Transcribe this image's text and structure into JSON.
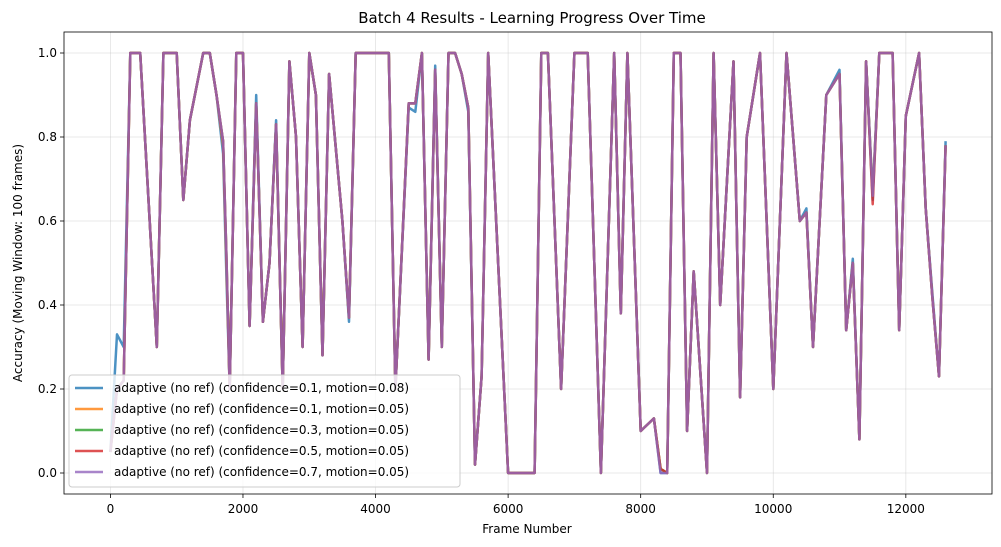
{
  "chart_data": {
    "type": "line",
    "title": "Batch 4 Results - Learning Progress Over Time",
    "xlabel": "Frame Number",
    "ylabel": "Accuracy (Moving Window: 100 frames)",
    "xlim": [
      -700,
      13300
    ],
    "ylim": [
      -0.05,
      1.05
    ],
    "xticks": [
      0,
      2000,
      4000,
      6000,
      8000,
      10000,
      12000
    ],
    "yticks": [
      0.0,
      0.2,
      0.4,
      0.6,
      0.8,
      1.0
    ],
    "grid": true,
    "legend_position": "lower-left",
    "series": [
      {
        "name": "adaptive (no ref) (confidence=0.1, motion=0.08)",
        "color": "#1f77b4",
        "x": [
          0,
          100,
          200,
          300,
          450,
          700,
          800,
          1000,
          1100,
          1200,
          1400,
          1500,
          1600,
          1700,
          1750,
          1800,
          1900,
          2000,
          2100,
          2200,
          2300,
          2400,
          2500,
          2600,
          2700,
          2800,
          2900,
          3000,
          3100,
          3200,
          3300,
          3500,
          3600,
          3700,
          4000,
          4200,
          4300,
          4500,
          4600,
          4700,
          4800,
          4900,
          5000,
          5100,
          5200,
          5300,
          5400,
          5500,
          5600,
          5700,
          6000,
          6400,
          6500,
          6600,
          6800,
          7000,
          7200,
          7400,
          7600,
          7700,
          7800,
          8000,
          8200,
          8300,
          8400,
          8500,
          8600,
          8700,
          8800,
          9000,
          9100,
          9200,
          9400,
          9500,
          9600,
          9800,
          10000,
          10200,
          10400,
          10500,
          10600,
          10800,
          11000,
          11100,
          11200,
          11300,
          11400,
          11500,
          11600,
          11800,
          11900,
          12000,
          12200,
          12300,
          12400,
          12500,
          12600
        ],
        "y": [
          0.05,
          0.33,
          0.3,
          1.0,
          1.0,
          0.3,
          1.0,
          1.0,
          0.65,
          0.84,
          1.0,
          1.0,
          0.9,
          0.76,
          0.47,
          0.2,
          1.0,
          1.0,
          0.35,
          0.9,
          0.36,
          0.5,
          0.84,
          0.2,
          0.98,
          0.8,
          0.3,
          1.0,
          0.9,
          0.28,
          0.95,
          0.6,
          0.36,
          1.0,
          1.0,
          1.0,
          0.2,
          0.87,
          0.86,
          1.0,
          0.27,
          0.97,
          0.3,
          1.0,
          1.0,
          0.95,
          0.86,
          0.02,
          0.23,
          1.0,
          0.0,
          0.0,
          1.0,
          1.0,
          0.2,
          1.0,
          1.0,
          0.0,
          1.0,
          0.38,
          1.0,
          0.1,
          0.13,
          0.0,
          0.0,
          1.0,
          1.0,
          0.1,
          0.48,
          0.0,
          1.0,
          0.4,
          0.98,
          0.18,
          0.8,
          1.0,
          0.2,
          1.0,
          0.6,
          0.63,
          0.3,
          0.9,
          0.96,
          0.34,
          0.51,
          0.08,
          0.98,
          0.65,
          1.0,
          1.0,
          0.34,
          0.85,
          1.0,
          0.63,
          0.43,
          0.23,
          0.79
        ]
      },
      {
        "name": "adaptive (no ref) (confidence=0.1, motion=0.05)",
        "color": "#ff7f0e",
        "x": [
          0,
          100,
          200,
          300,
          450,
          700,
          800,
          1000,
          1100,
          1200,
          1400,
          1500,
          1600,
          1700,
          1750,
          1800,
          1900,
          2000,
          2100,
          2200,
          2300,
          2400,
          2500,
          2600,
          2700,
          2800,
          2900,
          3000,
          3100,
          3200,
          3300,
          3500,
          3600,
          3700,
          4000,
          4200,
          4300,
          4500,
          4600,
          4700,
          4800,
          4900,
          5000,
          5100,
          5200,
          5300,
          5400,
          5500,
          5600,
          5700,
          6000,
          6400,
          6500,
          6600,
          6800,
          7000,
          7200,
          7400,
          7600,
          7700,
          7800,
          8000,
          8200,
          8300,
          8400,
          8500,
          8600,
          8700,
          8800,
          9000,
          9100,
          9200,
          9400,
          9500,
          9600,
          9800,
          10000,
          10200,
          10400,
          10500,
          10600,
          10800,
          11000,
          11100,
          11200,
          11300,
          11400,
          11500,
          11600,
          11800,
          11900,
          12000,
          12200,
          12300,
          12400,
          12500,
          12600
        ],
        "y": [
          0.05,
          0.2,
          0.22,
          1.0,
          1.0,
          0.3,
          1.0,
          1.0,
          0.65,
          0.84,
          1.0,
          1.0,
          0.9,
          0.78,
          0.5,
          0.2,
          1.0,
          1.0,
          0.35,
          0.88,
          0.36,
          0.5,
          0.83,
          0.2,
          0.98,
          0.8,
          0.3,
          1.0,
          0.9,
          0.28,
          0.95,
          0.6,
          0.37,
          1.0,
          1.0,
          1.0,
          0.2,
          0.88,
          0.88,
          1.0,
          0.27,
          0.96,
          0.3,
          1.0,
          1.0,
          0.95,
          0.87,
          0.02,
          0.23,
          1.0,
          0.0,
          0.0,
          1.0,
          1.0,
          0.2,
          1.0,
          1.0,
          0.0,
          1.0,
          0.38,
          1.0,
          0.1,
          0.13,
          0.01,
          0.0,
          1.0,
          1.0,
          0.1,
          0.48,
          0.0,
          1.0,
          0.4,
          0.98,
          0.18,
          0.8,
          1.0,
          0.2,
          1.0,
          0.6,
          0.62,
          0.3,
          0.9,
          0.95,
          0.34,
          0.5,
          0.08,
          0.98,
          0.66,
          1.0,
          1.0,
          0.34,
          0.85,
          1.0,
          0.63,
          0.42,
          0.23,
          0.78
        ]
      },
      {
        "name": "adaptive (no ref) (confidence=0.3, motion=0.05)",
        "color": "#2ca02c",
        "x": [
          0,
          100,
          200,
          300,
          450,
          700,
          800,
          1000,
          1100,
          1200,
          1400,
          1500,
          1600,
          1700,
          1750,
          1800,
          1900,
          2000,
          2100,
          2200,
          2300,
          2400,
          2500,
          2600,
          2700,
          2800,
          2900,
          3000,
          3100,
          3200,
          3300,
          3500,
          3600,
          3700,
          4000,
          4200,
          4300,
          4500,
          4600,
          4700,
          4800,
          4900,
          5000,
          5100,
          5200,
          5300,
          5400,
          5500,
          5600,
          5700,
          6000,
          6400,
          6500,
          6600,
          6800,
          7000,
          7200,
          7400,
          7600,
          7700,
          7800,
          8000,
          8200,
          8300,
          8400,
          8500,
          8600,
          8700,
          8800,
          9000,
          9100,
          9200,
          9400,
          9500,
          9600,
          9800,
          10000,
          10200,
          10400,
          10500,
          10600,
          10800,
          11000,
          11100,
          11200,
          11300,
          11400,
          11500,
          11600,
          11800,
          11900,
          12000,
          12200,
          12300,
          12400,
          12500,
          12600
        ],
        "y": [
          0.05,
          0.2,
          0.22,
          1.0,
          1.0,
          0.3,
          1.0,
          1.0,
          0.65,
          0.84,
          1.0,
          1.0,
          0.9,
          0.79,
          0.52,
          0.2,
          1.0,
          1.0,
          0.35,
          0.88,
          0.36,
          0.5,
          0.83,
          0.2,
          0.98,
          0.8,
          0.3,
          1.0,
          0.9,
          0.28,
          0.95,
          0.6,
          0.37,
          1.0,
          1.0,
          1.0,
          0.2,
          0.88,
          0.88,
          1.0,
          0.27,
          0.96,
          0.3,
          1.0,
          1.0,
          0.95,
          0.87,
          0.02,
          0.23,
          1.0,
          0.0,
          0.0,
          1.0,
          1.0,
          0.2,
          1.0,
          1.0,
          0.0,
          1.0,
          0.38,
          1.0,
          0.1,
          0.13,
          0.01,
          0.0,
          1.0,
          1.0,
          0.1,
          0.48,
          0.0,
          1.0,
          0.4,
          0.98,
          0.18,
          0.8,
          1.0,
          0.2,
          1.0,
          0.6,
          0.62,
          0.3,
          0.9,
          0.95,
          0.34,
          0.5,
          0.08,
          0.98,
          0.66,
          1.0,
          1.0,
          0.34,
          0.85,
          1.0,
          0.63,
          0.42,
          0.23,
          0.78
        ]
      },
      {
        "name": "adaptive (no ref) (confidence=0.5, motion=0.05)",
        "color": "#d62728",
        "x": [
          0,
          100,
          200,
          300,
          450,
          700,
          800,
          1000,
          1100,
          1200,
          1400,
          1500,
          1600,
          1700,
          1750,
          1800,
          1900,
          2000,
          2100,
          2200,
          2300,
          2400,
          2500,
          2600,
          2700,
          2800,
          2900,
          3000,
          3100,
          3200,
          3300,
          3500,
          3600,
          3700,
          4000,
          4200,
          4300,
          4500,
          4600,
          4700,
          4800,
          4900,
          5000,
          5100,
          5200,
          5300,
          5400,
          5500,
          5600,
          5700,
          6000,
          6400,
          6500,
          6600,
          6800,
          7000,
          7200,
          7400,
          7600,
          7700,
          7800,
          8000,
          8200,
          8300,
          8400,
          8500,
          8600,
          8700,
          8800,
          9000,
          9100,
          9200,
          9400,
          9500,
          9600,
          9800,
          10000,
          10200,
          10400,
          10500,
          10600,
          10800,
          11000,
          11100,
          11200,
          11300,
          11400,
          11500,
          11600,
          11800,
          11900,
          12000,
          12200,
          12300,
          12400,
          12500,
          12600
        ],
        "y": [
          0.05,
          0.2,
          0.22,
          1.0,
          1.0,
          0.3,
          1.0,
          1.0,
          0.65,
          0.84,
          1.0,
          1.0,
          0.9,
          0.79,
          0.52,
          0.2,
          1.0,
          1.0,
          0.35,
          0.88,
          0.36,
          0.5,
          0.83,
          0.2,
          0.98,
          0.8,
          0.3,
          1.0,
          0.9,
          0.28,
          0.95,
          0.6,
          0.37,
          1.0,
          1.0,
          1.0,
          0.2,
          0.88,
          0.88,
          1.0,
          0.27,
          0.96,
          0.3,
          1.0,
          1.0,
          0.95,
          0.87,
          0.02,
          0.23,
          1.0,
          0.0,
          0.0,
          1.0,
          1.0,
          0.2,
          1.0,
          1.0,
          0.0,
          1.0,
          0.38,
          1.0,
          0.1,
          0.13,
          0.01,
          0.0,
          1.0,
          1.0,
          0.1,
          0.48,
          0.0,
          1.0,
          0.4,
          0.98,
          0.18,
          0.8,
          1.0,
          0.2,
          1.0,
          0.6,
          0.62,
          0.3,
          0.9,
          0.95,
          0.34,
          0.5,
          0.08,
          0.98,
          0.64,
          1.0,
          1.0,
          0.34,
          0.85,
          1.0,
          0.63,
          0.42,
          0.23,
          0.78
        ]
      },
      {
        "name": "adaptive (no ref) (confidence=0.7, motion=0.05)",
        "color": "#9467bd",
        "x": [
          0,
          100,
          200,
          300,
          450,
          700,
          800,
          1000,
          1100,
          1200,
          1400,
          1500,
          1600,
          1700,
          1750,
          1800,
          1900,
          2000,
          2100,
          2200,
          2300,
          2400,
          2500,
          2600,
          2700,
          2800,
          2900,
          3000,
          3100,
          3200,
          3300,
          3500,
          3600,
          3700,
          4000,
          4200,
          4300,
          4500,
          4600,
          4700,
          4800,
          4900,
          5000,
          5100,
          5200,
          5300,
          5400,
          5500,
          5600,
          5700,
          6000,
          6400,
          6500,
          6600,
          6800,
          7000,
          7200,
          7400,
          7600,
          7700,
          7800,
          8000,
          8200,
          8300,
          8400,
          8500,
          8600,
          8700,
          8800,
          9000,
          9100,
          9200,
          9400,
          9500,
          9600,
          9800,
          10000,
          10200,
          10400,
          10500,
          10600,
          10800,
          11000,
          11100,
          11200,
          11300,
          11400,
          11500,
          11600,
          11800,
          11900,
          12000,
          12200,
          12300,
          12400,
          12500,
          12600
        ],
        "y": [
          0.05,
          0.2,
          0.22,
          1.0,
          1.0,
          0.3,
          1.0,
          1.0,
          0.65,
          0.84,
          1.0,
          1.0,
          0.9,
          0.79,
          0.52,
          0.2,
          1.0,
          1.0,
          0.35,
          0.88,
          0.36,
          0.5,
          0.83,
          0.2,
          0.98,
          0.8,
          0.3,
          1.0,
          0.9,
          0.28,
          0.95,
          0.6,
          0.37,
          1.0,
          1.0,
          1.0,
          0.2,
          0.88,
          0.88,
          1.0,
          0.27,
          0.96,
          0.3,
          1.0,
          1.0,
          0.95,
          0.87,
          0.02,
          0.23,
          1.0,
          0.0,
          0.0,
          1.0,
          1.0,
          0.2,
          1.0,
          1.0,
          0.0,
          1.0,
          0.38,
          1.0,
          0.1,
          0.13,
          0.0,
          0.0,
          1.0,
          1.0,
          0.1,
          0.48,
          0.0,
          1.0,
          0.4,
          0.98,
          0.18,
          0.8,
          1.0,
          0.2,
          1.0,
          0.6,
          0.62,
          0.3,
          0.9,
          0.95,
          0.34,
          0.5,
          0.08,
          0.98,
          0.66,
          1.0,
          1.0,
          0.34,
          0.85,
          1.0,
          0.63,
          0.42,
          0.23,
          0.78
        ]
      }
    ]
  }
}
